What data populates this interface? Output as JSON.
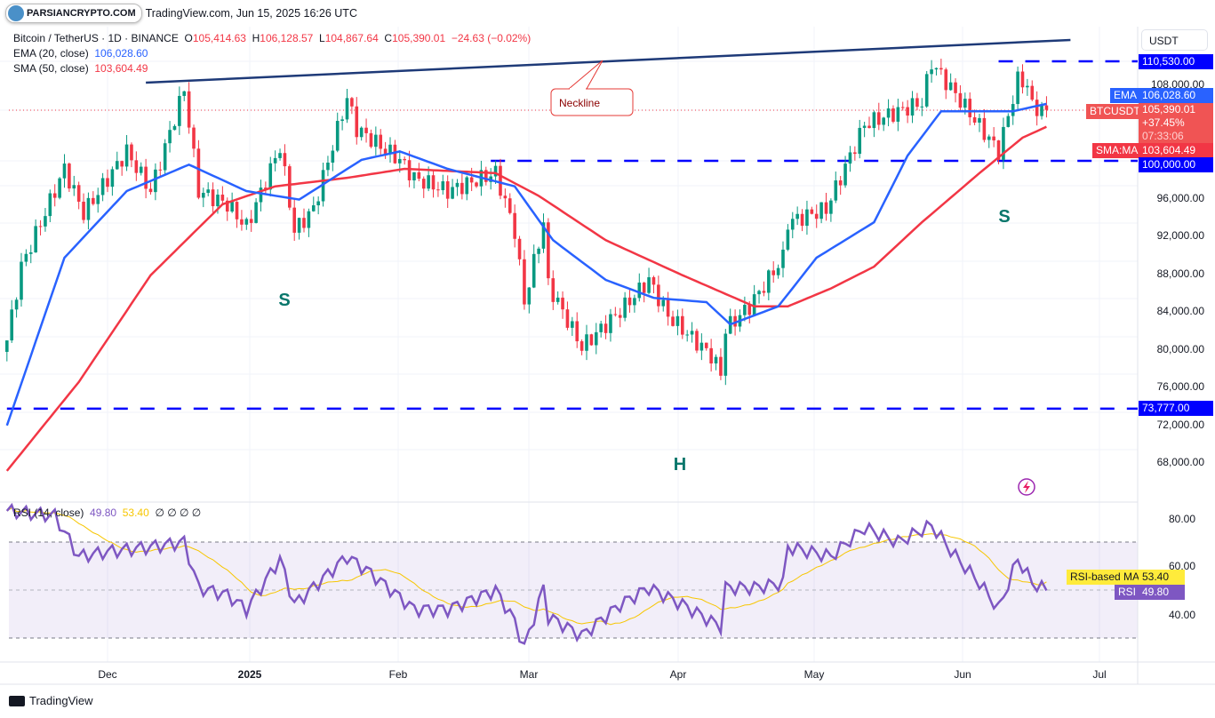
{
  "watermark": {
    "logo_text": "PARSIANCRYPTO.COM",
    "stamp": "TradingView.com, Jun 15, 2025 16:26 UTC"
  },
  "legend": {
    "symbol": "Bitcoin / TetherUS · 1D · BINANCE",
    "o_label": "O",
    "o": "105,414.63",
    "h_label": "H",
    "h": "106,128.57",
    "l_label": "L",
    "l": "104,867.64",
    "c_label": "C",
    "c": "105,390.01",
    "change": "−24.63 (−0.02%)",
    "ema_label": "EMA (20, close)",
    "ema_value": "106,028.60",
    "sma_label": "SMA (50, close)",
    "sma_value": "103,604.49",
    "rsi_label": "RSI (14, close)",
    "rsi_value": "49.80",
    "rsi_ma_value": "53.40",
    "rsi_extra": "∅ ∅ ∅ ∅"
  },
  "price_axis": {
    "currency": "USDT",
    "ticks": [
      "108,000.00",
      "96,000.00",
      "92,000.00",
      "88,000.00",
      "84,000.00",
      "80,000.00",
      "76,000.00",
      "72,000.00",
      "68,000.00"
    ],
    "tags": {
      "level_high": "110,530.00",
      "ema_label": "EMA",
      "ema": "106,028.60",
      "price_label": "BTCUSDT",
      "price": "105,390.01",
      "pct": "+37.45%",
      "countdown": "07:33:06",
      "sma_label": "SMA:MA",
      "sma": "103,604.49",
      "level_mid": "100,000.00",
      "level_low": "73,777.00"
    }
  },
  "rsi_axis": {
    "ticks": [
      "80.00",
      "60.00",
      "40.00"
    ],
    "ma_label": "RSI-based MA",
    "ma": "53.40",
    "rsi_label": "RSI",
    "rsi": "49.80"
  },
  "time_axis": {
    "ticks": [
      "Dec",
      "2025",
      "Feb",
      "Mar",
      "Apr",
      "May",
      "Jun",
      "Jul"
    ]
  },
  "annotations": {
    "neckline": "Neckline",
    "left_shoulder": "S",
    "head": "H",
    "right_shoulder": "S"
  },
  "footer": {
    "brand": "TradingView"
  },
  "colors": {
    "up": "#089981",
    "down": "#f23645",
    "ema": "#2962ff",
    "sma": "#f23645",
    "rsi": "#7e57c2",
    "rsi_ma": "#f7c600",
    "levels": "#0000ff",
    "neckline": "#1e3a78",
    "pattern_labels": "#08766b"
  },
  "chart_data": [
    {
      "type": "candlestick",
      "title": "Bitcoin / TetherUS · 1D · BINANCE",
      "ylim": [
        66000,
        114000
      ],
      "xlim": [
        "2024-11-10",
        "2025-07-12"
      ],
      "grid": true,
      "close_keypoints": [
        [
          "2024-11-10",
          81000
        ],
        [
          "2024-11-13",
          88800
        ],
        [
          "2024-11-22",
          99150
        ],
        [
          "2024-11-26",
          94450
        ],
        [
          "2024-12-05",
          101000
        ],
        [
          "2024-12-10",
          96800
        ],
        [
          "2024-12-17",
          107600
        ],
        [
          "2024-12-20",
          96800
        ],
        [
          "2024-12-26",
          95400
        ],
        [
          "2024-12-30",
          93000
        ],
        [
          "2025-01-06",
          101500
        ],
        [
          "2025-01-09",
          92600
        ],
        [
          "2025-01-13",
          94900
        ],
        [
          "2025-01-20",
          106700
        ],
        [
          "2025-01-22",
          103400
        ],
        [
          "2025-01-31",
          100100
        ],
        [
          "2025-02-03",
          98200
        ],
        [
          "2025-02-10",
          96800
        ],
        [
          "2025-02-20",
          98700
        ],
        [
          "2025-02-24",
          92600
        ],
        [
          "2025-02-26",
          85000
        ],
        [
          "2025-03-02",
          93500
        ],
        [
          "2025-03-03",
          86900
        ],
        [
          "2025-03-10",
          80300
        ],
        [
          "2025-03-18",
          84100
        ],
        [
          "2025-03-24",
          87400
        ],
        [
          "2025-03-28",
          83600
        ],
        [
          "2025-04-06",
          79400
        ],
        [
          "2025-04-08",
          77500
        ],
        [
          "2025-04-09",
          82200
        ],
        [
          "2025-04-14",
          84600
        ],
        [
          "2025-04-21",
          89750
        ],
        [
          "2025-04-22",
          93500
        ],
        [
          "2025-04-30",
          94900
        ],
        [
          "2025-05-08",
          103850
        ],
        [
          "2025-05-20",
          106200
        ],
        [
          "2025-05-22",
          110400
        ],
        [
          "2025-05-29",
          105700
        ],
        [
          "2025-06-05",
          101000
        ],
        [
          "2025-06-09",
          108550
        ],
        [
          "2025-06-11",
          108100
        ],
        [
          "2025-06-12",
          105700
        ],
        [
          "2025-06-15",
          105390
        ]
      ],
      "ema20": [
        [
          "2024-11-10",
          72000
        ],
        [
          "2024-11-22",
          89750
        ],
        [
          "2024-12-05",
          96800
        ],
        [
          "2024-12-18",
          99600
        ],
        [
          "2024-12-30",
          96800
        ],
        [
          "2025-01-10",
          95900
        ],
        [
          "2025-01-23",
          100100
        ],
        [
          "2025-01-31",
          101000
        ],
        [
          "2025-02-10",
          99150
        ],
        [
          "2025-02-24",
          97300
        ],
        [
          "2025-03-04",
          91600
        ],
        [
          "2025-03-15",
          87400
        ],
        [
          "2025-03-25",
          85500
        ],
        [
          "2025-04-05",
          85050
        ],
        [
          "2025-04-10",
          82700
        ],
        [
          "2025-04-20",
          84600
        ],
        [
          "2025-04-28",
          89750
        ],
        [
          "2025-05-10",
          93500
        ],
        [
          "2025-05-17",
          100550
        ],
        [
          "2025-05-24",
          105250
        ],
        [
          "2025-06-01",
          105250
        ],
        [
          "2025-06-08",
          105250
        ],
        [
          "2025-06-15",
          106028.6
        ]
      ],
      "sma50": [
        [
          "2024-11-10",
          67200
        ],
        [
          "2024-11-25",
          76600
        ],
        [
          "2024-12-10",
          87900
        ],
        [
          "2024-12-25",
          95400
        ],
        [
          "2025-01-05",
          97300
        ],
        [
          "2025-01-20",
          98200
        ],
        [
          "2025-02-01",
          99150
        ],
        [
          "2025-02-20",
          98700
        ],
        [
          "2025-03-01",
          96300
        ],
        [
          "2025-03-15",
          91600
        ],
        [
          "2025-03-31",
          87900
        ],
        [
          "2025-04-15",
          84600
        ],
        [
          "2025-04-22",
          84600
        ],
        [
          "2025-05-01",
          86500
        ],
        [
          "2025-05-10",
          88800
        ],
        [
          "2025-05-20",
          93500
        ],
        [
          "2025-06-01",
          98700
        ],
        [
          "2025-06-10",
          102450
        ],
        [
          "2025-06-15",
          103604.49
        ]
      ],
      "horizontal_levels": [
        {
          "price": 110530,
          "from": "2025-06-05"
        },
        {
          "price": 100000,
          "from": "2025-02-19"
        },
        {
          "price": 73777,
          "from": "2024-11-10"
        }
      ],
      "neckline": [
        [
          "2024-12-09",
          108270
        ],
        [
          "2025-06-20",
          112790
        ]
      ]
    },
    {
      "type": "line",
      "title": "RSI (14, close)",
      "ylim": [
        22,
        86
      ],
      "bands": [
        30,
        70
      ],
      "midline": 50,
      "rsi": [
        [
          "2024-11-10",
          83
        ],
        [
          "2024-11-20",
          81
        ],
        [
          "2024-11-25",
          64
        ],
        [
          "2024-12-01",
          66
        ],
        [
          "2024-12-10",
          68
        ],
        [
          "2024-12-17",
          70
        ],
        [
          "2024-12-20",
          51
        ],
        [
          "2024-12-26",
          48
        ],
        [
          "2024-12-30",
          42
        ],
        [
          "2025-01-06",
          63
        ],
        [
          "2025-01-09",
          44
        ],
        [
          "2025-01-20",
          64
        ],
        [
          "2025-01-25",
          57
        ],
        [
          "2025-02-03",
          42
        ],
        [
          "2025-02-10",
          42
        ],
        [
          "2025-02-20",
          50
        ],
        [
          "2025-02-24",
          37
        ],
        [
          "2025-02-26",
          26
        ],
        [
          "2025-03-02",
          51
        ],
        [
          "2025-03-03",
          39
        ],
        [
          "2025-03-10",
          31
        ],
        [
          "2025-03-18",
          44
        ],
        [
          "2025-03-24",
          51
        ],
        [
          "2025-03-31",
          44
        ],
        [
          "2025-04-06",
          37
        ],
        [
          "2025-04-08",
          35
        ],
        [
          "2025-04-09",
          51
        ],
        [
          "2025-04-15",
          51
        ],
        [
          "2025-04-21",
          53
        ],
        [
          "2025-04-22",
          68
        ],
        [
          "2025-05-01",
          64
        ],
        [
          "2025-05-08",
          76
        ],
        [
          "2025-05-15",
          70
        ],
        [
          "2025-05-22",
          77
        ],
        [
          "2025-05-27",
          64
        ],
        [
          "2025-06-01",
          53
        ],
        [
          "2025-06-05",
          42
        ],
        [
          "2025-06-09",
          63
        ],
        [
          "2025-06-12",
          53
        ],
        [
          "2025-06-15",
          49.8
        ]
      ]
    }
  ]
}
